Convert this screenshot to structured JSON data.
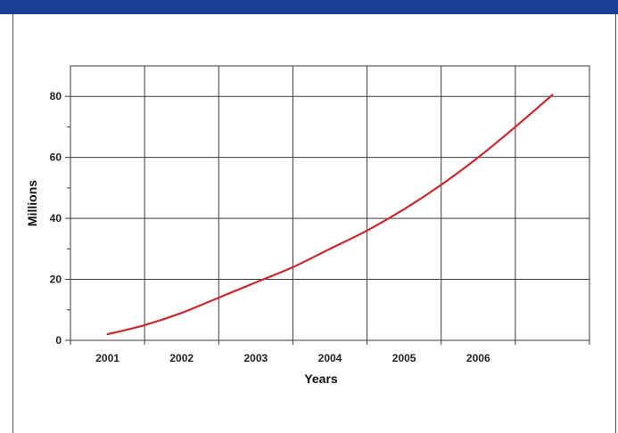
{
  "colors": {
    "top_bar": "#1b3f99",
    "line": "#c8282e",
    "grid": "#3a3a3a",
    "text": "#222222"
  },
  "chart_data": {
    "type": "line",
    "title": "",
    "xlabel": "Years",
    "ylabel": "Millions",
    "xlim": [
      2000,
      2007
    ],
    "ylim": [
      0,
      90
    ],
    "x_ticks": [
      2001,
      2002,
      2003,
      2004,
      2005,
      2006
    ],
    "y_ticks": [
      0,
      20,
      40,
      60,
      80
    ],
    "grid": true,
    "legend": "none",
    "series": [
      {
        "x": [
          2000.5,
          2001.0,
          2001.5,
          2002.0,
          2002.5,
          2003.0,
          2003.5,
          2004.0,
          2004.5,
          2005.0,
          2005.5,
          2006.0,
          2006.5
        ],
        "y": [
          2,
          5,
          9,
          14,
          19,
          24,
          30,
          36,
          43,
          51,
          60,
          70,
          80.5
        ]
      }
    ]
  }
}
